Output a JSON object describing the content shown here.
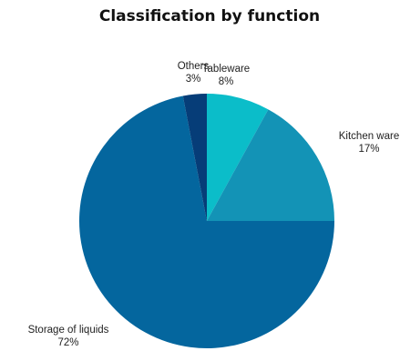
{
  "chart_data": {
    "type": "pie",
    "title": "Classification by function",
    "slices": [
      {
        "label": "Tableware",
        "value": 8,
        "display": "8%",
        "color": "#0bbdc9"
      },
      {
        "label": "Kitchen ware",
        "value": 17,
        "display": "17%",
        "color": "#1393b6"
      },
      {
        "label": "Storage of liquids",
        "value": 72,
        "display": "72%",
        "color": "#04669e"
      },
      {
        "label": "Others",
        "value": 3,
        "display": "3%",
        "color": "#063d78"
      }
    ],
    "start": "12 o'clock",
    "direction": "clockwise",
    "legend": "none (labels beside slices)"
  }
}
